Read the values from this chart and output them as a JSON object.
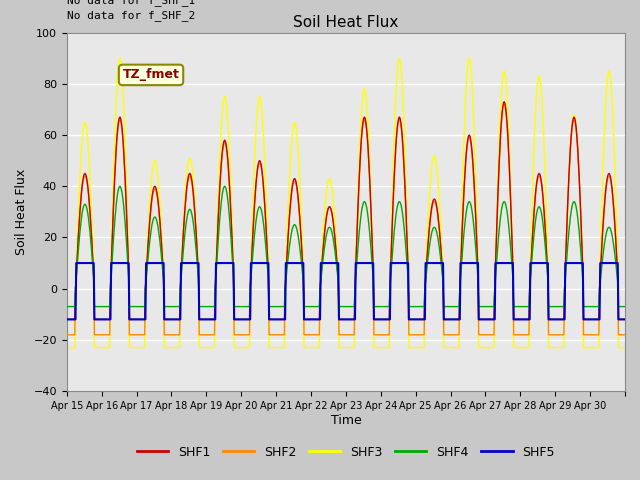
{
  "title": "Soil Heat Flux",
  "ylabel": "Soil Heat Flux",
  "xlabel": "Time",
  "annotations": [
    "No data for f_SHF_1",
    "No data for f_SHF_2"
  ],
  "box_label": "TZ_fmet",
  "ylim": [
    -40,
    100
  ],
  "yticks": [
    -40,
    -20,
    0,
    20,
    40,
    60,
    80,
    100
  ],
  "x_tick_labels": [
    "Apr 15",
    "Apr 16",
    "Apr 17",
    "Apr 18",
    "Apr 19",
    "Apr 20",
    "Apr 21",
    "Apr 22",
    "Apr 23",
    "Apr 24",
    "Apr 25",
    "Apr 26",
    "Apr 27",
    "Apr 28",
    "Apr 29",
    "Apr 30"
  ],
  "colors": {
    "SHF1": "#cc0000",
    "SHF2": "#ff8800",
    "SHF3": "#ffff00",
    "SHF4": "#00aa00",
    "SHF5": "#0000cc"
  },
  "fig_facecolor": "#c8c8c8",
  "axes_facecolor": "#e8e8e8",
  "n_days": 16,
  "pts_per_day": 48,
  "day_amps_shf1": [
    45,
    67,
    40,
    45,
    58,
    50,
    43,
    32,
    67,
    67,
    35,
    60,
    73,
    45,
    67,
    45
  ],
  "day_amps_shf2": [
    44,
    66,
    39,
    44,
    57,
    49,
    42,
    32,
    66,
    66,
    34,
    59,
    72,
    44,
    66,
    44
  ],
  "day_amps_shf3": [
    65,
    90,
    50,
    51,
    75,
    75,
    65,
    43,
    78,
    90,
    52,
    90,
    85,
    83,
    68,
    85
  ],
  "day_amps_shf4": [
    33,
    40,
    28,
    31,
    40,
    32,
    25,
    24,
    34,
    34,
    24,
    34,
    34,
    32,
    34,
    24
  ],
  "night_shf1": -12,
  "night_shf2": -18,
  "night_shf3": -23,
  "night_shf4": -7,
  "day_shf5": 10,
  "night_shf5": -12
}
